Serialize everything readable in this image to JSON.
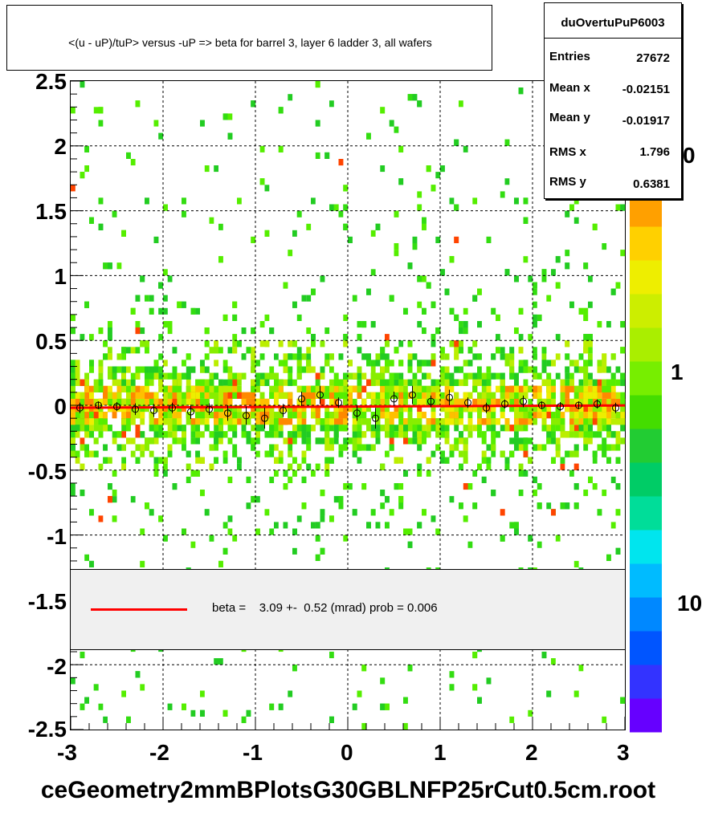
{
  "title": "<(u - uP)/tuP> versus  -uP => beta for barrel 3, layer 6 ladder 3, all wafers",
  "stats": {
    "name": "duOvertuPuP6003",
    "rows": [
      {
        "label": "Entries",
        "value": "27672"
      },
      {
        "label": "Mean x",
        "value": "-0.02151"
      },
      {
        "label": "Mean y",
        "value": "-0.01917"
      },
      {
        "label": "RMS x",
        "value": "1.796"
      },
      {
        "label": "RMS y",
        "value": "0.6381"
      }
    ]
  },
  "fit_legend": "beta =    3.09 +-  0.52 (mrad) prob = 0.006",
  "footer": "ceGeometry2mmBPlotsG30GBLNFP25rCut0.5cm.root",
  "z_labels": [
    "0",
    "1",
    "10"
  ],
  "colors": {
    "fit_line": "#ff0000",
    "palette": [
      "#6600ff",
      "#3333ff",
      "#0055ff",
      "#0088ff",
      "#00bbff",
      "#00e5ee",
      "#00dd99",
      "#00cc66",
      "#22cc33",
      "#44dd00",
      "#77ee00",
      "#aaee00",
      "#ccee00",
      "#eeee00",
      "#ffd000",
      "#ffa000"
    ]
  },
  "chart_data": {
    "type": "heatmap",
    "title": "<(u - uP)/tuP> versus  -uP => beta for barrel 3, layer 6 ladder 3, all wafers",
    "xlabel": "",
    "ylabel": "",
    "xlim": [
      -3,
      3
    ],
    "ylim": [
      -2.5,
      2.5
    ],
    "x_ticks": [
      "-3",
      "-2",
      "-1",
      "0",
      "1",
      "2",
      "3"
    ],
    "y_ticks": [
      "2.5",
      "2",
      "1.5",
      "1",
      "0.5",
      "0",
      "-0.5",
      "-1",
      "-1.5",
      "-2",
      "-2.5"
    ],
    "grid": true,
    "z_scale": "log",
    "profile_points": {
      "x": [
        -2.9,
        -2.7,
        -2.5,
        -2.3,
        -2.1,
        -1.9,
        -1.7,
        -1.5,
        -1.3,
        -1.1,
        -0.9,
        -0.7,
        -0.5,
        -0.3,
        -0.1,
        0.1,
        0.3,
        0.5,
        0.7,
        0.9,
        1.1,
        1.3,
        1.5,
        1.7,
        1.9,
        2.1,
        2.3,
        2.5,
        2.7,
        2.9
      ],
      "y": [
        -0.02,
        0.0,
        -0.01,
        -0.03,
        -0.04,
        -0.02,
        -0.05,
        -0.03,
        -0.06,
        -0.08,
        -0.1,
        -0.04,
        0.05,
        0.08,
        0.02,
        -0.06,
        -0.1,
        0.05,
        0.08,
        0.03,
        0.06,
        0.02,
        -0.02,
        0.01,
        0.03,
        0.0,
        -0.01,
        0.0,
        0.01,
        -0.02
      ]
    },
    "fit": {
      "type": "line",
      "intercept": -0.01,
      "slope": 0.003,
      "label": "beta =    3.09 +-  0.52 (mrad) prob = 0.006"
    }
  }
}
